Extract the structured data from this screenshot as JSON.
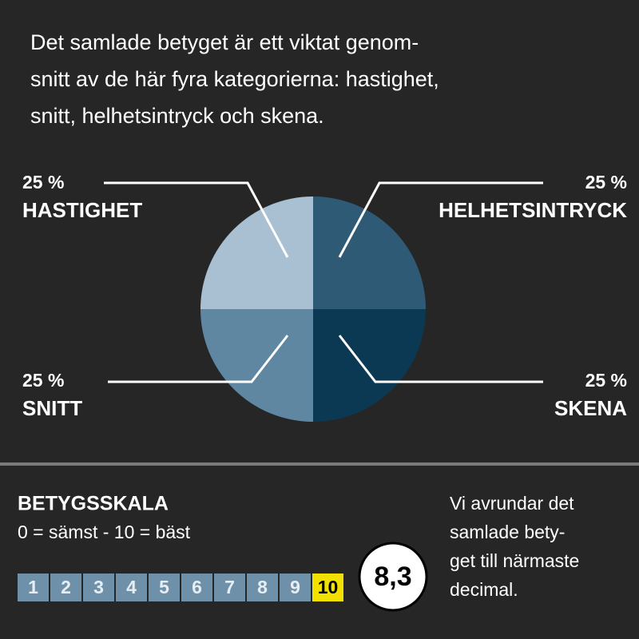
{
  "intro": [
    "Det samlade betyget är ett viktat genom-",
    "snitt av de här fyra kategorierna: hastighet,",
    "snitt, helhetsintryck och skena."
  ],
  "chart_data": {
    "type": "pie",
    "categories": [
      "HELHETSINTRYCK",
      "SKENA",
      "SNITT",
      "HASTIGHET"
    ],
    "values": [
      25,
      25,
      25,
      25
    ],
    "value_labels": [
      "25 %",
      "25 %",
      "25 %",
      "25 %"
    ],
    "colors": [
      "#2e5a75",
      "#0b3954",
      "#5f87a1",
      "#a8c0d1"
    ]
  },
  "scale": {
    "title": "BETYGSSKALA",
    "subtitle": "0 = sämst - 10 = bäst",
    "steps": [
      "1",
      "2",
      "3",
      "4",
      "5",
      "6",
      "7",
      "8",
      "9",
      "10"
    ],
    "colors": [
      "#6f90a9",
      "#6f90a9",
      "#6f90a9",
      "#6f90a9",
      "#6f90a9",
      "#6f90a9",
      "#6f90a9",
      "#6f90a9",
      "#6f90a9",
      "#f2e000"
    ],
    "example": "8,3"
  },
  "note": [
    "Vi  avrundar det",
    "samlade bety-",
    "get till närmaste",
    "decimal."
  ]
}
